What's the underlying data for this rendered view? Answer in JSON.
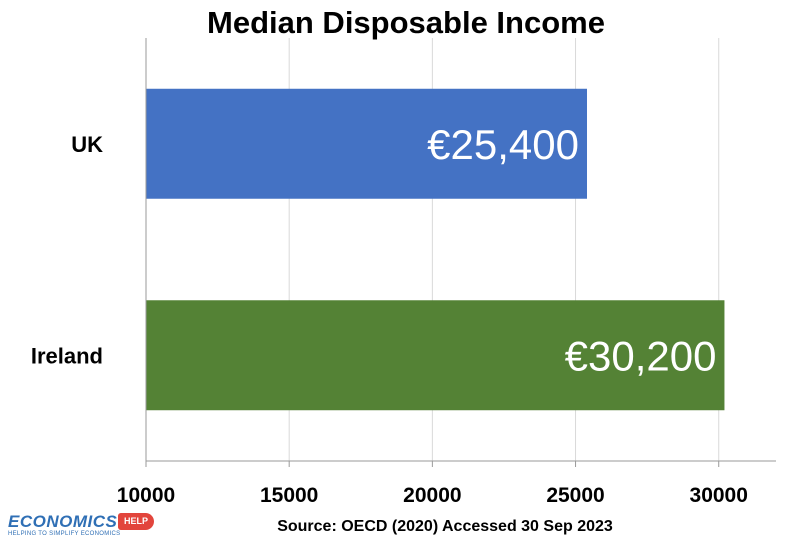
{
  "chart_data": {
    "type": "bar",
    "orientation": "horizontal",
    "title": "Median Disposable Income",
    "categories": [
      "UK",
      "Ireland"
    ],
    "values": [
      25400,
      30200
    ],
    "value_labels": [
      "€25,400",
      "€30,200"
    ],
    "colors": [
      "#4472c4",
      "#548235"
    ],
    "xlim": [
      10000,
      32000
    ],
    "xticks": [
      10000,
      15000,
      20000,
      25000,
      30000
    ],
    "xtick_labels": [
      "10000",
      "15000",
      "20000",
      "25000",
      "30000"
    ],
    "grid": "vertical",
    "source": "Source: OECD (2020) Accessed 30 Sep 2023"
  },
  "logo": {
    "word": "ECONOMICS",
    "badge": "HELP",
    "tagline": "HELPING TO SIMPLIFY ECONOMICS"
  }
}
